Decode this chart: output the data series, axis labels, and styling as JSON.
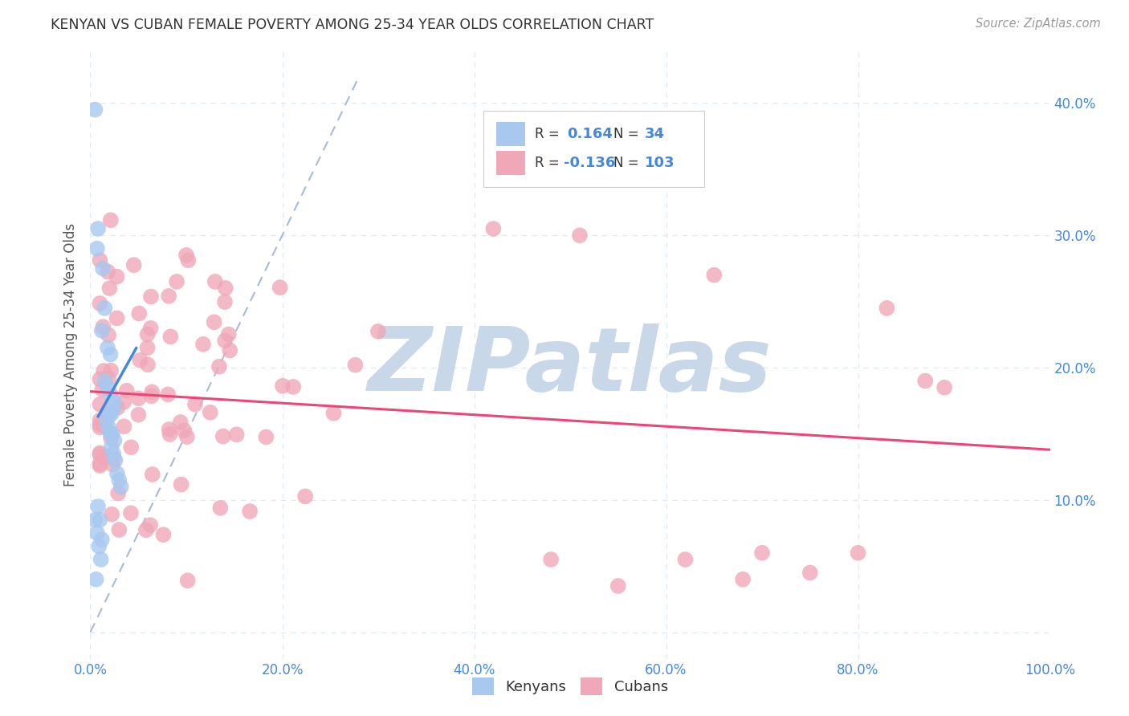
{
  "title": "KENYAN VS CUBAN FEMALE POVERTY AMONG 25-34 YEAR OLDS CORRELATION CHART",
  "source": "Source: ZipAtlas.com",
  "ylabel": "Female Poverty Among 25-34 Year Olds",
  "xlim": [
    0,
    1.0
  ],
  "ylim": [
    -0.02,
    0.44
  ],
  "xticks": [
    0.0,
    0.2,
    0.4,
    0.6,
    0.8,
    1.0
  ],
  "xticklabels": [
    "0.0%",
    "20.0%",
    "40.0%",
    "60.0%",
    "80.0%",
    "100.0%"
  ],
  "yticks_left": [
    0.0,
    0.1,
    0.2,
    0.3,
    0.4
  ],
  "yticklabels_left": [
    "",
    "",
    "",
    "",
    ""
  ],
  "yticks_right": [
    0.0,
    0.1,
    0.2,
    0.3,
    0.4
  ],
  "yticklabels_right": [
    "",
    "10.0%",
    "20.0%",
    "30.0%",
    "40.0%"
  ],
  "kenyan_color": "#a8c8f0",
  "cuban_color": "#f0a8b8",
  "kenyan_R": 0.164,
  "kenyan_N": 34,
  "cuban_R": -0.136,
  "cuban_N": 103,
  "kenyan_line_color": "#4488dd",
  "cuban_line_color": "#ee4477",
  "diagonal_color": "#aabbd0",
  "tick_label_color": "#4488dd",
  "background_color": "#ffffff",
  "grid_color": "#dde8f0",
  "watermark_color": "#c8d8e8",
  "kenyan_seed": 42,
  "cuban_seed": 99
}
